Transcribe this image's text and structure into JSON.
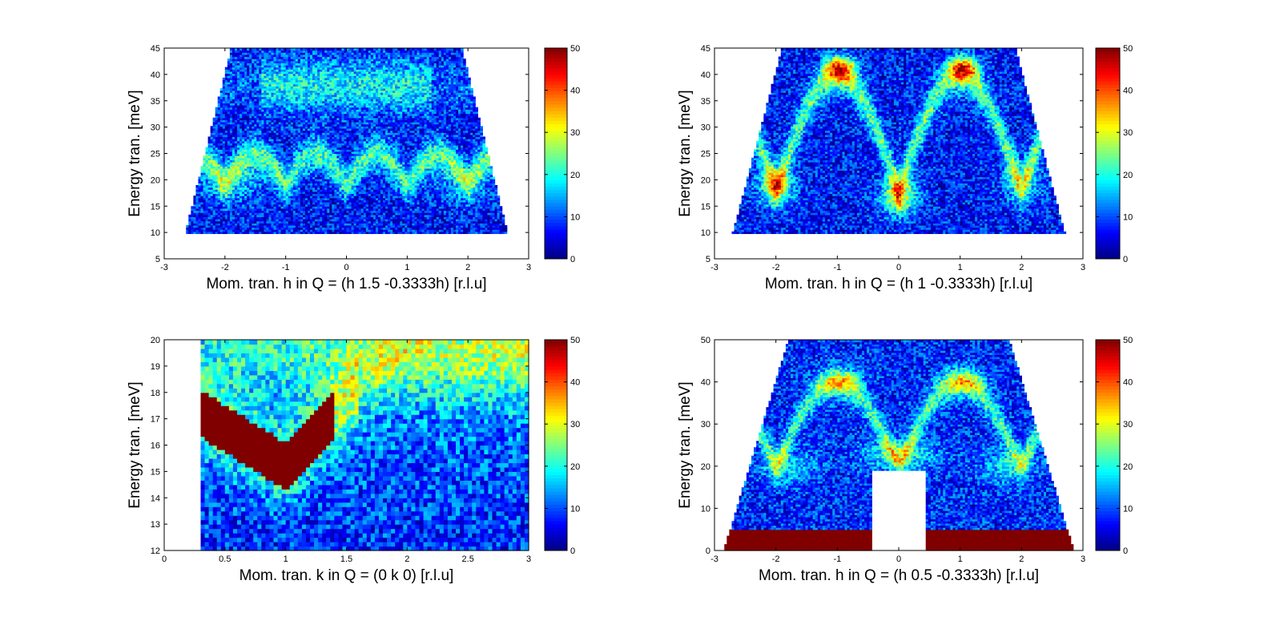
{
  "figure": {
    "panel_count": 4
  },
  "colormap": {
    "name": "jet",
    "range": [
      0,
      50
    ]
  },
  "chart_data": [
    {
      "type": "heatmap",
      "title": "",
      "xlabel": "Mom. tran. h in Q = (h 1.5 -0.3333h) [r.l.u]",
      "ylabel": "Energy tran. [meV]",
      "xlim": [
        -3,
        3
      ],
      "ylim": [
        5,
        45
      ],
      "xticks": [
        -3,
        -2,
        -1,
        0,
        1,
        2,
        3
      ],
      "yticks": [
        5,
        10,
        15,
        20,
        25,
        30,
        35,
        40,
        45
      ],
      "colorbar": {
        "range": [
          0,
          50
        ],
        "ticks": [
          0,
          10,
          20,
          30,
          40,
          50
        ]
      },
      "coverage": {
        "energy_min": 10,
        "energy_max": 45,
        "h_half_width_at_emin": 2.65,
        "h_half_width_at_emax": 1.9
      },
      "features": [
        {
          "label": "dispersive branch minima (x, meV)",
          "points": [
            [
              -1.9,
              19
            ],
            [
              -1.0,
              18
            ],
            [
              0.0,
              18
            ],
            [
              1.0,
              18
            ],
            [
              1.9,
              19
            ]
          ]
        },
        {
          "label": "band maxima (x, meV)",
          "points": [
            [
              -1.5,
              24
            ],
            [
              -0.45,
              27
            ],
            [
              0.45,
              27
            ],
            [
              1.5,
              24
            ]
          ]
        },
        {
          "label": "upper flat band (meV)",
          "value": 38
        }
      ]
    },
    {
      "type": "heatmap",
      "title": "",
      "xlabel": "Mom. tran. h in Q = (h 1 -0.3333h) [r.l.u]",
      "ylabel": "Energy tran. [meV]",
      "xlim": [
        -3,
        3
      ],
      "ylim": [
        5,
        45
      ],
      "xticks": [
        -3,
        -2,
        -1,
        0,
        1,
        2,
        3
      ],
      "yticks": [
        5,
        10,
        15,
        20,
        25,
        30,
        35,
        40,
        45
      ],
      "colorbar": {
        "range": [
          0,
          50
        ],
        "ticks": [
          0,
          10,
          20,
          30,
          40,
          50
        ]
      },
      "coverage": {
        "energy_min": 10,
        "energy_max": 45,
        "h_half_width_at_emin": 2.7,
        "h_half_width_at_emax": 1.9
      },
      "features": [
        {
          "label": "intensity maxima (x, meV)",
          "points": [
            [
              -2.0,
              19
            ],
            [
              0.0,
              17
            ],
            [
              -0.95,
              41
            ],
            [
              1.05,
              41
            ]
          ]
        },
        {
          "label": "dispersion minima (x, meV)",
          "points": [
            [
              -2.0,
              18
            ],
            [
              0.0,
              17
            ],
            [
              2.0,
              20
            ]
          ]
        }
      ]
    },
    {
      "type": "heatmap",
      "title": "",
      "xlabel": "Mom. tran. k in Q = (0 k 0) [r.l.u]",
      "ylabel": "Energy tran. [meV]",
      "xlim": [
        0,
        3
      ],
      "ylim": [
        12,
        20
      ],
      "xticks": [
        0,
        0.5,
        1,
        1.5,
        2,
        2.5,
        3
      ],
      "xtick_labels": [
        "0",
        "0.5",
        "1",
        "1.5",
        "2",
        "2.5",
        "3"
      ],
      "yticks": [
        12,
        13,
        14,
        15,
        16,
        17,
        18,
        19,
        20
      ],
      "colorbar": {
        "range": [
          0,
          50
        ],
        "ticks": [
          0,
          10,
          20,
          30,
          40,
          50
        ]
      },
      "coverage": {
        "k_min": 0.3,
        "k_max": 3.0,
        "energy_min": 12,
        "energy_max": 20
      },
      "features": [
        {
          "label": "V-shaped branch (k, meV)",
          "points": [
            [
              0.3,
              17.2
            ],
            [
              1.0,
              15.2
            ],
            [
              1.3,
              16.9
            ]
          ]
        }
      ]
    },
    {
      "type": "heatmap",
      "title": "",
      "xlabel": "Mom. tran. h in Q = (h 0.5 -0.3333h) [r.l.u]",
      "ylabel": "Energy tran. [meV]",
      "xlim": [
        -3,
        3
      ],
      "ylim": [
        0,
        50
      ],
      "xticks": [
        -3,
        -2,
        -1,
        0,
        1,
        2,
        3
      ],
      "yticks": [
        0,
        10,
        20,
        30,
        40,
        50
      ],
      "colorbar": {
        "range": [
          0,
          50
        ],
        "ticks": [
          0,
          10,
          20,
          30,
          40,
          50
        ]
      },
      "coverage": {
        "energy_min": 0,
        "energy_max": 50,
        "h_half_width_at_emin": 2.85,
        "h_half_width_at_emax": 1.8,
        "masked_region": {
          "h": [
            -0.45,
            0.45
          ],
          "energy": [
            0,
            19
          ]
        }
      },
      "features": [
        {
          "label": "band maxima (x, meV)",
          "points": [
            [
              -0.95,
              40
            ],
            [
              1.05,
              40
            ]
          ]
        },
        {
          "label": "elastic line saturated (meV)",
          "value": [
            0,
            5
          ]
        }
      ]
    }
  ]
}
